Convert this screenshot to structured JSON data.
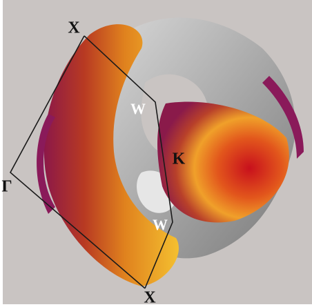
{
  "labels": {
    "x_top": "X",
    "w_upper": "W",
    "k": "K",
    "gamma": "Γ",
    "w_lower": "W",
    "x_bottom": "X"
  }
}
